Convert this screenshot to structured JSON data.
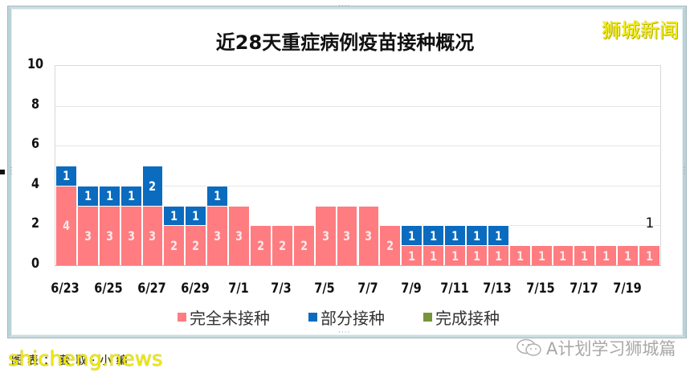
{
  "header": {
    "title": "近28天重症病例疫苗接种概况",
    "watermark": "狮城新闻"
  },
  "footer": {
    "site": "shicheng.news",
    "underlying_text": "图表：获取·小编",
    "account_icon": "wechat-icon",
    "account": "A计划学习狮城篇"
  },
  "colors": {
    "unvaccinated": "#ff7c80",
    "partial": "#0a6bbf",
    "full": "#77933c",
    "watermark": "#f6f11a"
  },
  "axis": {
    "y_ticks": [
      "0",
      "2",
      "4",
      "6",
      "8",
      "10"
    ],
    "x_ticks": [
      "6/23",
      "6/25",
      "6/27",
      "6/29",
      "7/1",
      "7/3",
      "7/5",
      "7/7",
      "7/9",
      "7/11",
      "7/13",
      "7/15",
      "7/17",
      "7/19"
    ]
  },
  "legend": [
    {
      "label": "完全未接种",
      "color": "#ff7c80"
    },
    {
      "label": "部分接种",
      "color": "#0a6bbf"
    },
    {
      "label": "完成接种",
      "color": "#77933c"
    }
  ],
  "chart_data": {
    "type": "bar",
    "stacked": true,
    "title": "近28天重症病例疫苗接种概况",
    "xlabel": "",
    "ylabel": "",
    "ylim": [
      0,
      10
    ],
    "grid": true,
    "legend_position": "bottom",
    "categories": [
      "6/23",
      "6/24",
      "6/25",
      "6/26",
      "6/27",
      "6/28",
      "6/29",
      "6/30",
      "7/1",
      "7/2",
      "7/3",
      "7/4",
      "7/5",
      "7/6",
      "7/7",
      "7/8",
      "7/9",
      "7/10",
      "7/11",
      "7/12",
      "7/13",
      "7/14",
      "7/15",
      "7/16",
      "7/17",
      "7/18",
      "7/19",
      "7/20"
    ],
    "series": [
      {
        "name": "完全未接种",
        "color": "#ff7c80",
        "values": [
          4,
          3,
          3,
          3,
          3,
          2,
          2,
          3,
          3,
          2,
          2,
          2,
          3,
          3,
          3,
          2,
          1,
          1,
          1,
          1,
          1,
          1,
          1,
          1,
          1,
          1,
          1,
          1
        ]
      },
      {
        "name": "部分接种",
        "color": "#0a6bbf",
        "values": [
          1,
          1,
          1,
          1,
          2,
          1,
          1,
          1,
          0,
          0,
          0,
          0,
          0,
          0,
          0,
          0,
          1,
          1,
          1,
          1,
          1,
          0,
          0,
          0,
          0,
          0,
          0,
          0
        ]
      },
      {
        "name": "完成接种",
        "color": "#77933c",
        "values": [
          0,
          0,
          0,
          0,
          0,
          0,
          0,
          0,
          0,
          0,
          0,
          0,
          0,
          0,
          0,
          0,
          0,
          0,
          0,
          0,
          0,
          0,
          0,
          0,
          0,
          0,
          0,
          0
        ]
      }
    ],
    "annotations": [
      {
        "x": "7/20",
        "y": 2,
        "text": "1"
      }
    ]
  }
}
